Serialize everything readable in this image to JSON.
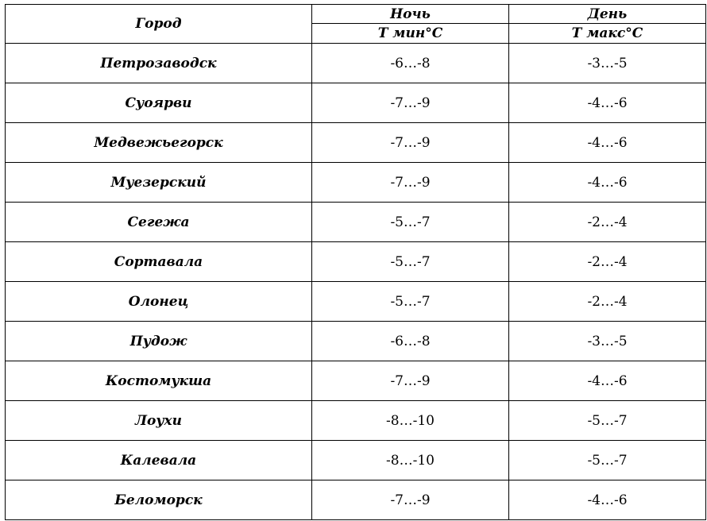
{
  "table": {
    "headers": {
      "city": "Город",
      "night": "Ночь",
      "day": "День",
      "night_unit": "Т мин°С",
      "day_unit": "Т макс°С"
    },
    "rows": [
      {
        "city": "Петрозаводск",
        "night": "-6…-8",
        "day": "-3…-5"
      },
      {
        "city": "Суоярви",
        "night": "-7…-9",
        "day": "-4…-6"
      },
      {
        "city": "Медвежьегорск",
        "night": "-7…-9",
        "day": "-4…-6"
      },
      {
        "city": "Муезерский",
        "night": "-7…-9",
        "day": "-4…-6"
      },
      {
        "city": "Сегежа",
        "night": "-5…-7",
        "day": "-2…-4"
      },
      {
        "city": "Сортавала",
        "night": "-5…-7",
        "day": "-2…-4"
      },
      {
        "city": "Олонец",
        "night": "-5…-7",
        "day": "-2…-4"
      },
      {
        "city": "Пудож",
        "night": "-6…-8",
        "day": "-3…-5"
      },
      {
        "city": "Костомукша",
        "night": "-7…-9",
        "day": "-4…-6"
      },
      {
        "city": "Лоухи",
        "night": "-8…-10",
        "day": "-5…-7"
      },
      {
        "city": "Калевала",
        "night": "-8…-10",
        "day": "-5…-7"
      },
      {
        "city": "Беломорск",
        "night": "-7…-9",
        "day": "-4…-6"
      }
    ]
  }
}
